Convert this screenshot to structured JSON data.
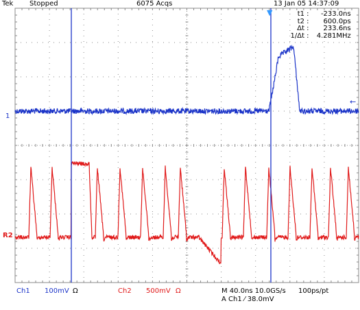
{
  "header": {
    "brand": "Tek",
    "run_state": "Stopped",
    "acquisitions": "6075 Acqs",
    "timestamp": "13 Jan 05 14:37:09"
  },
  "measurements": [
    {
      "key": "t1",
      "value": "-233.0ns"
    },
    {
      "key": "t2",
      "value": "600.0ps"
    },
    {
      "key": "Δt",
      "value": "233.6ns"
    },
    {
      "key": "1/Δt",
      "value": "4.281MHz"
    }
  ],
  "markers": {
    "ch1_level": "1",
    "ch2_level": "R2",
    "trigger_arrow": "←",
    "trigger_position": "▼"
  },
  "footer": {
    "ch1_label": "Ch1",
    "ch1_scale": "100mV",
    "ch1_coupling": "Ω",
    "ch2_label": "Ch2",
    "ch2_scale": "500mV",
    "ch2_coupling": "Ω",
    "timebase": "M 40.0ns 10.0GS/s",
    "record": "100ps/pt",
    "trigger": "A  Ch1  ⁄  38.0mV"
  },
  "colors": {
    "ch1": "#1a33c8",
    "ch2": "#e01818",
    "grid": "#888888",
    "cursor": "#1a33c8"
  }
}
